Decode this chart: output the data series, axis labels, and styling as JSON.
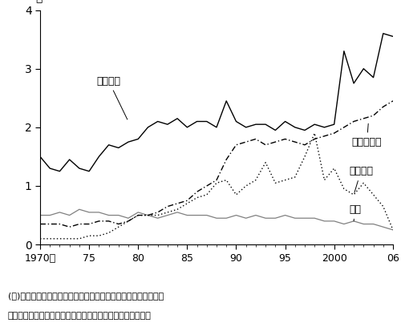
{
  "years": [
    1970,
    1971,
    1972,
    1973,
    1974,
    1975,
    1976,
    1977,
    1978,
    1979,
    1980,
    1981,
    1982,
    1983,
    1984,
    1985,
    1986,
    1987,
    1988,
    1989,
    1990,
    1991,
    1992,
    1993,
    1994,
    1995,
    1996,
    1997,
    1998,
    1999,
    2000,
    2001,
    2002,
    2003,
    2004,
    2005,
    2006
  ],
  "natural_disaster": [
    1.5,
    1.3,
    1.25,
    1.45,
    1.3,
    1.25,
    1.5,
    1.7,
    1.65,
    1.75,
    1.8,
    2.0,
    2.1,
    2.05,
    2.15,
    2.0,
    2.1,
    2.1,
    2.0,
    2.45,
    2.1,
    2.0,
    2.05,
    2.05,
    1.95,
    2.1,
    2.0,
    1.95,
    2.05,
    2.0,
    2.05,
    3.3,
    2.75,
    3.0,
    2.85,
    3.6,
    3.55
  ],
  "technical_disaster": [
    0.35,
    0.35,
    0.35,
    0.3,
    0.35,
    0.35,
    0.4,
    0.4,
    0.35,
    0.4,
    0.5,
    0.5,
    0.55,
    0.65,
    0.7,
    0.75,
    0.9,
    1.0,
    1.1,
    1.45,
    1.7,
    1.75,
    1.8,
    1.7,
    1.75,
    1.8,
    1.75,
    1.7,
    1.8,
    1.85,
    1.9,
    2.0,
    2.1,
    2.15,
    2.2,
    2.35,
    2.45
  ],
  "economic_crisis": [
    0.1,
    0.1,
    0.1,
    0.1,
    0.1,
    0.15,
    0.15,
    0.2,
    0.3,
    0.4,
    0.5,
    0.5,
    0.5,
    0.55,
    0.6,
    0.7,
    0.8,
    0.85,
    1.05,
    1.1,
    0.85,
    1.0,
    1.1,
    1.4,
    1.05,
    1.1,
    1.15,
    1.5,
    1.9,
    1.1,
    1.3,
    0.95,
    0.85,
    1.05,
    0.85,
    0.65,
    0.25
  ],
  "war": [
    0.5,
    0.5,
    0.55,
    0.5,
    0.6,
    0.55,
    0.55,
    0.5,
    0.5,
    0.45,
    0.55,
    0.5,
    0.45,
    0.5,
    0.55,
    0.5,
    0.5,
    0.5,
    0.45,
    0.45,
    0.5,
    0.45,
    0.5,
    0.45,
    0.45,
    0.5,
    0.45,
    0.45,
    0.45,
    0.4,
    0.4,
    0.35,
    0.4,
    0.35,
    0.35,
    0.3,
    0.25
  ],
  "ylabel": "件",
  "xlabel_ticks": [
    1970,
    1975,
    1980,
    1985,
    1990,
    1995,
    2000,
    2006
  ],
  "xlabel_labels": [
    "1970年",
    "75",
    "80",
    "85",
    "90",
    "95",
    "2000",
    "06"
  ],
  "yticks": [
    0,
    1,
    2,
    3,
    4
  ],
  "ylim": [
    0,
    4
  ],
  "xlim": [
    1970,
    2006
  ],
  "label_natural": "自然災害",
  "label_technical": "技術的災害",
  "label_economic": "経済危機",
  "label_war": "戦争",
  "note_line1": "(注)自然災害と技術的災害は災害疫学研究センター、経済危機と",
  "note_line2": "　戦争はラインハート教授らのデータベースより、筆者作成",
  "color_natural": "#000000",
  "color_technical": "#000000",
  "color_economic": "#000000",
  "color_war": "#808080"
}
